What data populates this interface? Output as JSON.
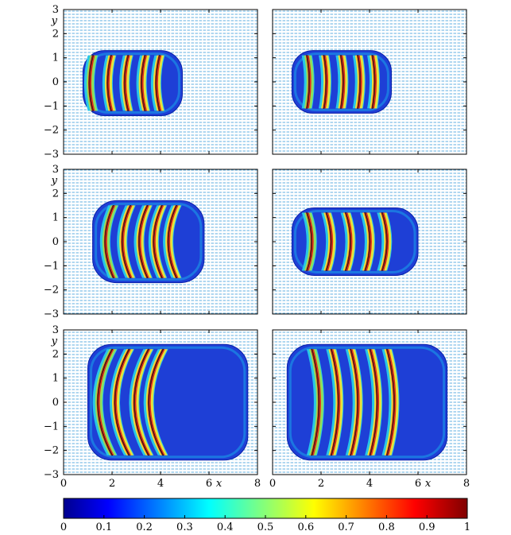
{
  "chart_data": {
    "type": "heatmap",
    "title": "",
    "xlabel": "x",
    "ylabel": "y",
    "xlim": [
      0,
      8
    ],
    "ylim": [
      -3,
      3
    ],
    "x_ticks": [
      "0",
      "2",
      "4",
      "6",
      "8"
    ],
    "y_ticks": [
      "3",
      "2",
      "1",
      "0",
      "−1",
      "−2",
      "−3"
    ],
    "grid": false,
    "layout": "3 rows x 2 columns",
    "panels": [
      {
        "name": "top-left",
        "region": {
          "x": [
            0.8,
            4.9
          ],
          "y": [
            -1.4,
            1.3
          ]
        },
        "stripes_x": [
          0.95,
          1.7,
          2.4,
          3.1,
          3.7
        ],
        "curvature": 0.15
      },
      {
        "name": "top-right",
        "region": {
          "x": [
            0.8,
            4.9
          ],
          "y": [
            -1.3,
            1.3
          ]
        },
        "stripes_x": [
          1.4,
          2.1,
          2.8,
          3.5,
          4.1
        ],
        "curvature": -0.1
      },
      {
        "name": "middle-left",
        "region": {
          "x": [
            1.2,
            5.8
          ],
          "y": [
            -1.7,
            1.7
          ]
        },
        "stripes_x": [
          1.6,
          2.3,
          3.0,
          3.6,
          4.2
        ],
        "curvature": 0.35
      },
      {
        "name": "middle-right",
        "region": {
          "x": [
            0.8,
            6.0
          ],
          "y": [
            -1.4,
            1.4
          ]
        },
        "stripes_x": [
          1.5,
          2.3,
          3.1,
          3.9,
          4.6
        ],
        "curvature": -0.2
      },
      {
        "name": "bottom-left",
        "region": {
          "x": [
            1.0,
            7.6
          ],
          "y": [
            -2.4,
            2.4
          ]
        },
        "stripes_x": [
          1.3,
          2.0,
          2.8,
          3.4
        ],
        "curvature": 0.6
      },
      {
        "name": "bottom-right",
        "region": {
          "x": [
            0.6,
            7.2
          ],
          "y": [
            -2.4,
            2.4
          ]
        },
        "stripes_x": [
          1.8,
          2.6,
          3.4,
          4.2,
          4.9
        ],
        "curvature": -0.3
      }
    ],
    "colorbar": {
      "range": [
        0,
        1
      ],
      "ticks": [
        "0",
        "0.1",
        "0.2",
        "0.3",
        "0.4",
        "0.5",
        "0.6",
        "0.7",
        "0.8",
        "0.9",
        "1"
      ],
      "colormap": "jet"
    }
  }
}
